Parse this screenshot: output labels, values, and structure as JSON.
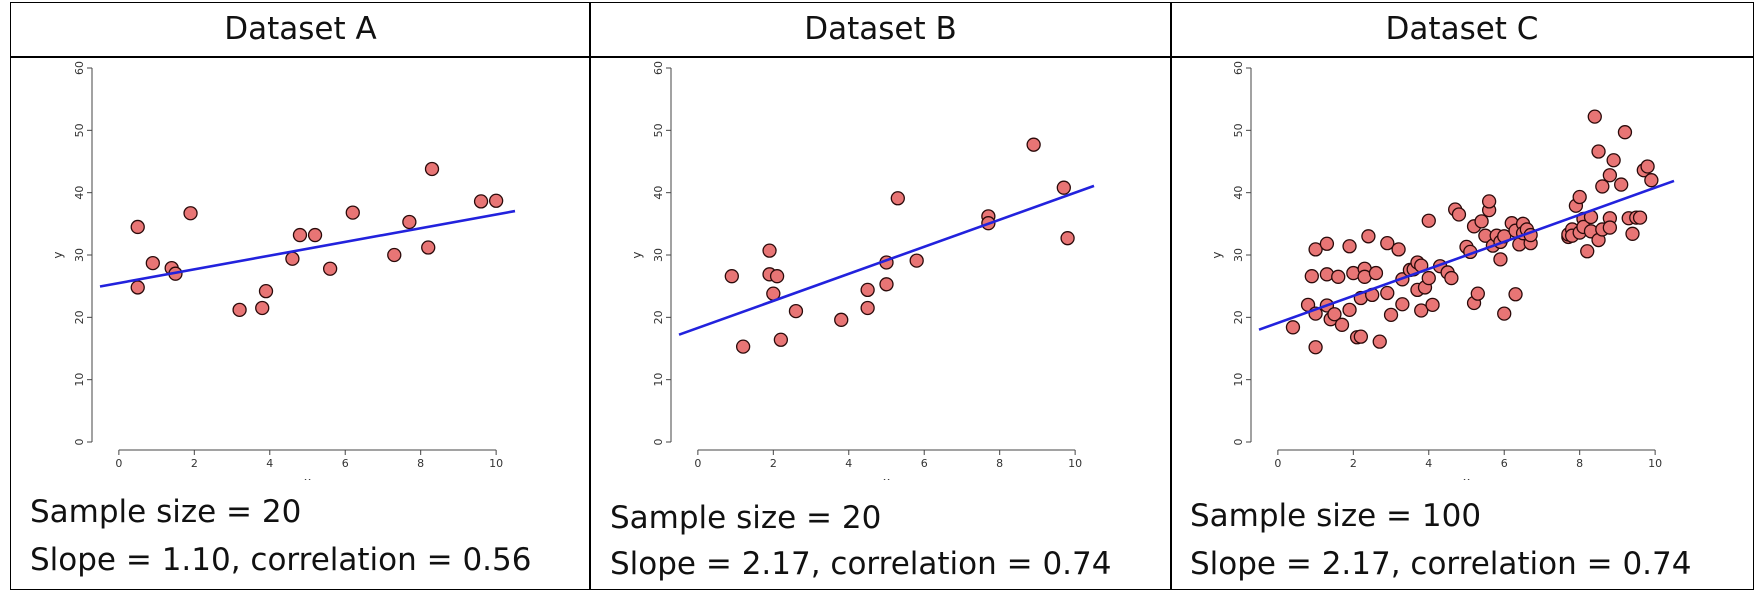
{
  "chart_data": [
    {
      "type": "scatter",
      "title": "Dataset A",
      "xlabel": "x",
      "ylabel": "y",
      "xlim": [
        -0.5,
        10.5
      ],
      "ylim": [
        0,
        60
      ],
      "xticks": [
        0,
        2,
        4,
        6,
        8,
        10
      ],
      "yticks": [
        0,
        10,
        20,
        30,
        40,
        50,
        60
      ],
      "points": [
        [
          0.5,
          34.5
        ],
        [
          0.5,
          24.8
        ],
        [
          0.9,
          28.7
        ],
        [
          1.4,
          27.9
        ],
        [
          1.5,
          27.0
        ],
        [
          1.9,
          36.7
        ],
        [
          3.2,
          21.2
        ],
        [
          3.8,
          21.5
        ],
        [
          3.9,
          24.2
        ],
        [
          4.6,
          29.4
        ],
        [
          4.8,
          33.2
        ],
        [
          5.2,
          33.2
        ],
        [
          5.6,
          27.8
        ],
        [
          6.2,
          36.8
        ],
        [
          7.3,
          30.0
        ],
        [
          7.7,
          35.3
        ],
        [
          8.2,
          31.2
        ],
        [
          8.3,
          43.8
        ],
        [
          9.6,
          38.6
        ],
        [
          10.0,
          38.7
        ]
      ],
      "fit_line": {
        "intercept": 25.5,
        "slope": 1.1
      },
      "caption_lines": [
        "Sample size = 20",
        "Slope = 1.10, correlation = 0.56"
      ],
      "colors": {
        "point_fill": "#e87575",
        "point_stroke": "#2a0a0a",
        "line": "#2222dd"
      }
    },
    {
      "type": "scatter",
      "title": "Dataset B",
      "xlabel": "x",
      "ylabel": "y",
      "xlim": [
        -0.5,
        10.5
      ],
      "ylim": [
        0,
        60
      ],
      "xticks": [
        0,
        2,
        4,
        6,
        8,
        10
      ],
      "yticks": [
        0,
        10,
        20,
        30,
        40,
        50,
        60
      ],
      "points": [
        [
          0.9,
          26.6
        ],
        [
          1.2,
          15.3
        ],
        [
          1.9,
          26.9
        ],
        [
          1.9,
          30.7
        ],
        [
          2.0,
          23.8
        ],
        [
          2.1,
          26.6
        ],
        [
          2.2,
          16.4
        ],
        [
          2.6,
          21.0
        ],
        [
          3.8,
          19.6
        ],
        [
          4.5,
          21.5
        ],
        [
          4.5,
          24.4
        ],
        [
          5.0,
          28.8
        ],
        [
          5.0,
          25.3
        ],
        [
          5.3,
          39.1
        ],
        [
          5.8,
          29.1
        ],
        [
          7.7,
          36.2
        ],
        [
          7.7,
          35.1
        ],
        [
          8.9,
          47.7
        ],
        [
          9.7,
          40.8
        ],
        [
          9.8,
          32.7
        ]
      ],
      "fit_line": {
        "intercept": 18.3,
        "slope": 2.17
      },
      "caption_lines": [
        "Sample size = 20",
        "Slope = 2.17, correlation = 0.74"
      ],
      "colors": {
        "point_fill": "#e87575",
        "point_stroke": "#2a0a0a",
        "line": "#2222dd"
      }
    },
    {
      "type": "scatter",
      "title": "Dataset C",
      "xlabel": "x",
      "ylabel": "y",
      "xlim": [
        -0.5,
        10.5
      ],
      "ylim": [
        0,
        60
      ],
      "xticks": [
        0,
        2,
        4,
        6,
        8,
        10
      ],
      "yticks": [
        0,
        10,
        20,
        30,
        40,
        50,
        60
      ],
      "points": [
        [
          0.4,
          18.4
        ],
        [
          0.8,
          22.0
        ],
        [
          0.9,
          26.6
        ],
        [
          1.0,
          30.9
        ],
        [
          1.0,
          15.2
        ],
        [
          1.0,
          20.6
        ],
        [
          1.3,
          31.8
        ],
        [
          1.3,
          21.9
        ],
        [
          1.3,
          26.9
        ],
        [
          1.4,
          19.7
        ],
        [
          1.5,
          20.5
        ],
        [
          1.6,
          26.5
        ],
        [
          1.7,
          18.8
        ],
        [
          1.9,
          31.4
        ],
        [
          1.9,
          21.2
        ],
        [
          2.0,
          27.1
        ],
        [
          2.1,
          16.8
        ],
        [
          2.2,
          23.1
        ],
        [
          2.2,
          16.9
        ],
        [
          2.3,
          27.8
        ],
        [
          2.3,
          26.5
        ],
        [
          2.4,
          33.0
        ],
        [
          2.5,
          23.6
        ],
        [
          2.6,
          27.1
        ],
        [
          2.7,
          16.1
        ],
        [
          2.9,
          31.9
        ],
        [
          2.9,
          23.9
        ],
        [
          3.0,
          20.4
        ],
        [
          3.2,
          30.9
        ],
        [
          3.3,
          26.1
        ],
        [
          3.3,
          22.1
        ],
        [
          3.5,
          27.6
        ],
        [
          3.6,
          27.7
        ],
        [
          3.7,
          24.4
        ],
        [
          3.7,
          28.8
        ],
        [
          3.8,
          28.3
        ],
        [
          3.8,
          21.1
        ],
        [
          3.9,
          24.8
        ],
        [
          4.0,
          35.5
        ],
        [
          4.0,
          26.3
        ],
        [
          4.1,
          22.0
        ],
        [
          4.3,
          28.2
        ],
        [
          4.5,
          27.2
        ],
        [
          4.6,
          26.3
        ],
        [
          4.7,
          37.3
        ],
        [
          4.8,
          36.5
        ],
        [
          5.0,
          31.3
        ],
        [
          5.1,
          30.5
        ],
        [
          5.2,
          22.3
        ],
        [
          5.2,
          34.6
        ],
        [
          5.3,
          23.8
        ],
        [
          5.4,
          35.4
        ],
        [
          5.5,
          33.1
        ],
        [
          5.6,
          37.2
        ],
        [
          5.6,
          38.6
        ],
        [
          5.7,
          31.5
        ],
        [
          5.8,
          33.1
        ],
        [
          5.9,
          32.1
        ],
        [
          5.9,
          29.3
        ],
        [
          6.0,
          33.0
        ],
        [
          6.0,
          20.6
        ],
        [
          6.2,
          35.1
        ],
        [
          6.3,
          23.7
        ],
        [
          6.3,
          33.9
        ],
        [
          6.4,
          31.7
        ],
        [
          6.5,
          35.0
        ],
        [
          6.5,
          33.5
        ],
        [
          6.6,
          34.1
        ],
        [
          6.7,
          31.9
        ],
        [
          6.7,
          33.2
        ],
        [
          7.7,
          32.9
        ],
        [
          7.7,
          33.3
        ],
        [
          7.8,
          34.1
        ],
        [
          7.8,
          33.1
        ],
        [
          7.9,
          37.9
        ],
        [
          8.0,
          33.6
        ],
        [
          8.0,
          39.3
        ],
        [
          8.1,
          35.8
        ],
        [
          8.1,
          34.5
        ],
        [
          8.2,
          30.6
        ],
        [
          8.3,
          36.1
        ],
        [
          8.3,
          33.8
        ],
        [
          8.4,
          52.2
        ],
        [
          8.5,
          32.4
        ],
        [
          8.5,
          46.6
        ],
        [
          8.6,
          34.1
        ],
        [
          8.6,
          41.0
        ],
        [
          8.8,
          35.9
        ],
        [
          8.8,
          34.4
        ],
        [
          8.8,
          42.8
        ],
        [
          8.9,
          45.2
        ],
        [
          9.1,
          41.3
        ],
        [
          9.2,
          49.7
        ],
        [
          9.3,
          35.9
        ],
        [
          9.4,
          33.4
        ],
        [
          9.5,
          36.0
        ],
        [
          9.6,
          36.0
        ],
        [
          9.7,
          43.6
        ],
        [
          9.8,
          44.2
        ],
        [
          9.9,
          42.0
        ]
      ],
      "fit_line": {
        "intercept": 19.1,
        "slope": 2.17
      },
      "caption_lines": [
        "Sample size = 100",
        "Slope = 2.17, correlation = 0.74"
      ],
      "colors": {
        "point_fill": "#e87575",
        "point_stroke": "#2a0a0a",
        "line": "#2222dd"
      }
    }
  ]
}
